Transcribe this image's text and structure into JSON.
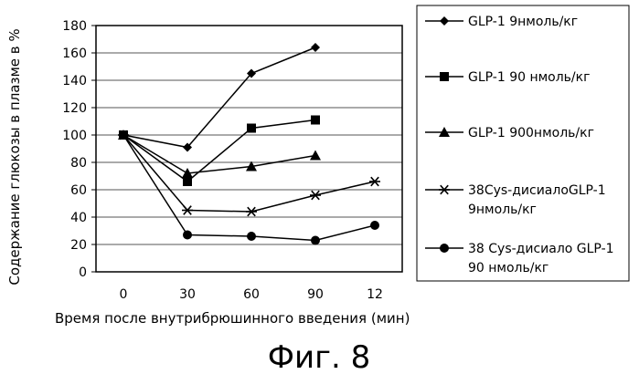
{
  "chart_data": {
    "type": "line",
    "x": [
      "0",
      "30",
      "60",
      "90",
      "12"
    ],
    "series": [
      {
        "name_lines": [
          "GLP-1 9нмоль/кг"
        ],
        "marker": "diamond",
        "values": [
          100,
          91,
          145,
          164,
          null
        ]
      },
      {
        "name_lines": [
          "GLP-1 90 нмоль/кг"
        ],
        "marker": "square",
        "values": [
          100,
          66,
          105,
          111,
          null
        ]
      },
      {
        "name_lines": [
          "GLP-1 900нмоль/кг"
        ],
        "marker": "triangle",
        "values": [
          100,
          72,
          77,
          85,
          null
        ]
      },
      {
        "name_lines": [
          "38Cys-дисиалоGLP-1",
          "9нмоль/кг"
        ],
        "marker": "asterisk",
        "values": [
          100,
          45,
          44,
          56,
          66
        ]
      },
      {
        "name_lines": [
          "38 Cys-дисиало GLP-1",
          "90 нмоль/кг"
        ],
        "marker": "circle",
        "values": [
          100,
          27,
          26,
          23,
          34
        ]
      }
    ],
    "ylim": [
      0,
      180
    ],
    "yticks": [
      0,
      20,
      40,
      60,
      80,
      100,
      120,
      140,
      160,
      180
    ],
    "grid": true,
    "legend": "right",
    "xlabel": "Время после внутрибрюшинного введения (мин)",
    "ylabel": "Содержание глюкозы в плазме в %"
  },
  "caption": "Фиг. 8"
}
